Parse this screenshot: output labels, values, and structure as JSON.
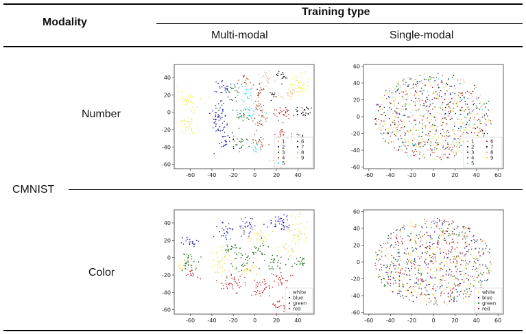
{
  "table": {
    "header_modality": "Modality",
    "header_training_type": "Training type",
    "col_multi": "Multi-modal",
    "col_single": "Single-modal",
    "group_label": "CMNIST",
    "row_number": "Number",
    "row_color": "Color"
  },
  "chart_data": [
    {
      "id": "number-multi",
      "type": "scatter",
      "title": "",
      "xlim": [
        -75,
        55
      ],
      "ylim": [
        -65,
        55
      ],
      "xticks": [
        -60,
        -40,
        -20,
        0,
        20,
        40
      ],
      "yticks": [
        -60,
        -40,
        -20,
        0,
        20,
        40
      ],
      "legend": [
        "1",
        "2",
        "3",
        "4",
        "5",
        "6",
        "7",
        "8",
        "9"
      ],
      "legend_cols": 2,
      "legend_position": "bottom-right",
      "colors": [
        "#f4a460",
        "#1a1aa0",
        "#1e6b1e",
        "#a0522d",
        "#40e0e8",
        "#c0202a",
        "#111111",
        "#e8b090",
        "#eeee40"
      ],
      "clusters": [
        [
          -62,
          15,
          5,
          5,
          8,
          30
        ],
        [
          -62,
          -12,
          5,
          8,
          8,
          40
        ],
        [
          40,
          30,
          8,
          8,
          8,
          50
        ],
        [
          -33,
          -5,
          4,
          10,
          1,
          50
        ],
        [
          -28,
          28,
          4,
          6,
          1,
          25
        ],
        [
          -27,
          -30,
          4,
          5,
          1,
          30
        ],
        [
          -20,
          25,
          4,
          5,
          2,
          20
        ],
        [
          -12,
          -5,
          4,
          6,
          2,
          25
        ],
        [
          -12,
          -35,
          4,
          4,
          2,
          20
        ],
        [
          -8,
          20,
          4,
          5,
          4,
          20
        ],
        [
          -5,
          0,
          5,
          6,
          4,
          25
        ],
        [
          0,
          -42,
          4,
          3,
          4,
          15
        ],
        [
          -8,
          35,
          3,
          4,
          3,
          15
        ],
        [
          4,
          25,
          3,
          4,
          3,
          20
        ],
        [
          4,
          5,
          3,
          5,
          3,
          20
        ],
        [
          5,
          -10,
          3,
          6,
          3,
          20
        ],
        [
          5,
          -35,
          4,
          4,
          3,
          20
        ],
        [
          25,
          42,
          3,
          3,
          6,
          15
        ],
        [
          18,
          20,
          3,
          3,
          6,
          10
        ],
        [
          45,
          0,
          4,
          4,
          6,
          25
        ],
        [
          40,
          -30,
          4,
          3,
          6,
          10
        ],
        [
          25,
          0,
          5,
          5,
          5,
          30
        ],
        [
          25,
          -25,
          4,
          4,
          5,
          25
        ],
        [
          12,
          40,
          4,
          5,
          7,
          20
        ],
        [
          32,
          20,
          4,
          3,
          7,
          15
        ],
        [
          22,
          -57,
          5,
          3,
          7,
          15
        ],
        [
          30,
          -50,
          3,
          3,
          0,
          10
        ]
      ]
    },
    {
      "id": "number-single",
      "type": "scatter",
      "xlim": [
        -65,
        65
      ],
      "ylim": [
        -62,
        62
      ],
      "xticks": [
        -60,
        -40,
        -20,
        0,
        20,
        40,
        60
      ],
      "yticks": [
        -60,
        -40,
        -20,
        0,
        20,
        40,
        60
      ],
      "legend": [
        "1",
        "2",
        "3",
        "4",
        "5",
        "6",
        "7",
        "8",
        "9"
      ],
      "legend_cols": 2,
      "legend_position": "bottom-right",
      "colors": [
        "#f4a460",
        "#1a1aa0",
        "#1e6b1e",
        "#a0522d",
        "#40e0e8",
        "#c0202a",
        "#111111",
        "#e8b090",
        "#eeee40"
      ],
      "spread": {
        "rx": 55,
        "ry": 52,
        "n": 900,
        "weights": [
          1,
          1.2,
          1,
          1,
          0.8,
          1,
          1.2,
          1,
          1.6
        ]
      }
    },
    {
      "id": "color-multi",
      "type": "scatter",
      "xlim": [
        -75,
        55
      ],
      "ylim": [
        -65,
        55
      ],
      "xticks": [
        -60,
        -40,
        -20,
        0,
        20,
        40
      ],
      "yticks": [
        -60,
        -40,
        -20,
        0,
        20,
        40
      ],
      "legend": [
        "white",
        "blue",
        "green",
        "red"
      ],
      "legend_cols": 1,
      "legend_position": "bottom-right",
      "colors": [
        "#eedd55",
        "#1a1aa0",
        "#1e6b1e",
        "#c0202a"
      ],
      "clusters": [
        [
          -60,
          18,
          4,
          3,
          1,
          20
        ],
        [
          -62,
          -3,
          5,
          6,
          2,
          30
        ],
        [
          -58,
          -18,
          4,
          3,
          3,
          15
        ],
        [
          -68,
          -10,
          3,
          4,
          0,
          15
        ],
        [
          -28,
          28,
          4,
          6,
          1,
          25
        ],
        [
          -8,
          35,
          5,
          5,
          1,
          30
        ],
        [
          25,
          40,
          8,
          5,
          1,
          40
        ],
        [
          -30,
          -5,
          5,
          8,
          0,
          40
        ],
        [
          -20,
          10,
          5,
          5,
          2,
          25
        ],
        [
          -10,
          -5,
          5,
          6,
          2,
          30
        ],
        [
          5,
          10,
          4,
          5,
          2,
          25
        ],
        [
          20,
          -5,
          5,
          5,
          2,
          25
        ],
        [
          45,
          -5,
          4,
          4,
          2,
          20
        ],
        [
          -20,
          -30,
          6,
          5,
          3,
          40
        ],
        [
          5,
          -35,
          5,
          5,
          3,
          35
        ],
        [
          25,
          -25,
          4,
          4,
          3,
          25
        ],
        [
          25,
          -55,
          5,
          4,
          3,
          25
        ],
        [
          5,
          25,
          5,
          5,
          0,
          30
        ],
        [
          40,
          30,
          5,
          8,
          0,
          40
        ],
        [
          30,
          10,
          4,
          4,
          0,
          20
        ],
        [
          -5,
          -15,
          5,
          5,
          0,
          25
        ]
      ]
    },
    {
      "id": "color-single",
      "type": "scatter",
      "xlim": [
        -65,
        65
      ],
      "ylim": [
        -62,
        62
      ],
      "xticks": [
        -60,
        -40,
        -20,
        0,
        20,
        40,
        60
      ],
      "yticks": [
        -60,
        -40,
        -20,
        0,
        20,
        40,
        60
      ],
      "legend": [
        "white",
        "blue",
        "green",
        "red"
      ],
      "legend_cols": 1,
      "legend_position": "bottom-right",
      "colors": [
        "#eedd55",
        "#1a1aa0",
        "#1e6b1e",
        "#c0202a"
      ],
      "spread": {
        "rx": 55,
        "ry": 52,
        "n": 900,
        "weights": [
          1.2,
          1,
          1.1,
          1
        ]
      }
    }
  ]
}
